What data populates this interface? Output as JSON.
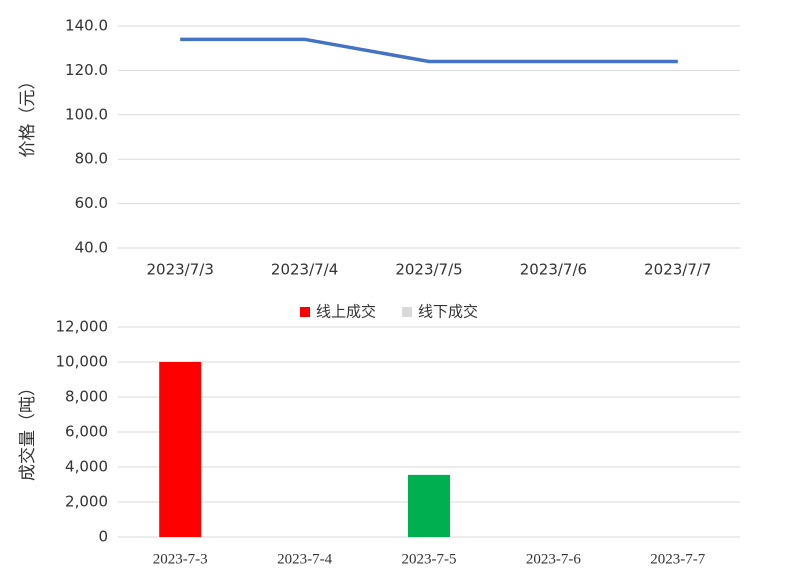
{
  "chart_data": [
    {
      "type": "line",
      "y_label": "价格（元）",
      "categories": [
        "2023/7/3",
        "2023/7/4",
        "2023/7/5",
        "2023/7/6",
        "2023/7/7"
      ],
      "series": [
        {
          "color": "#4472c4",
          "values": [
            134,
            134,
            124,
            124,
            124
          ]
        }
      ],
      "ylim": [
        40,
        140
      ],
      "yticks": [
        {
          "value": 40,
          "label": "40.0"
        },
        {
          "value": 60,
          "label": "60.0"
        },
        {
          "value": 80,
          "label": "80.0"
        },
        {
          "value": 100,
          "label": "100.0"
        },
        {
          "value": 120,
          "label": "120.0"
        },
        {
          "value": 140,
          "label": "140.0"
        }
      ],
      "grid": true
    },
    {
      "type": "bar",
      "y_label": "成交量（吨）",
      "stacked": true,
      "legend": "top",
      "categories": [
        "2023-7-3",
        "2023-7-4",
        "2023-7-5",
        "2023-7-6",
        "2023-7-7"
      ],
      "series": [
        {
          "name": "线上成交",
          "color": "#ff0000",
          "point_colors": [
            "#ff0000",
            "#ff0000",
            "#00b050",
            "#ff0000",
            "#ff0000"
          ],
          "values": [
            10000,
            0,
            3550,
            0,
            0
          ]
        },
        {
          "name": "线下成交",
          "color": "#d9d9d9",
          "values": [
            0,
            0,
            0,
            0,
            0
          ]
        }
      ],
      "ylim": [
        0,
        12000
      ],
      "yticks": [
        0,
        {
          "value": 2000,
          "label": "2,000"
        },
        {
          "value": 4000,
          "label": "4,000"
        },
        {
          "value": 6000,
          "label": "6,000"
        },
        {
          "value": 8000,
          "label": "8,000"
        },
        {
          "value": 10000,
          "label": "10,000"
        },
        {
          "value": 12000,
          "label": "12,000"
        }
      ],
      "grid": true
    }
  ]
}
